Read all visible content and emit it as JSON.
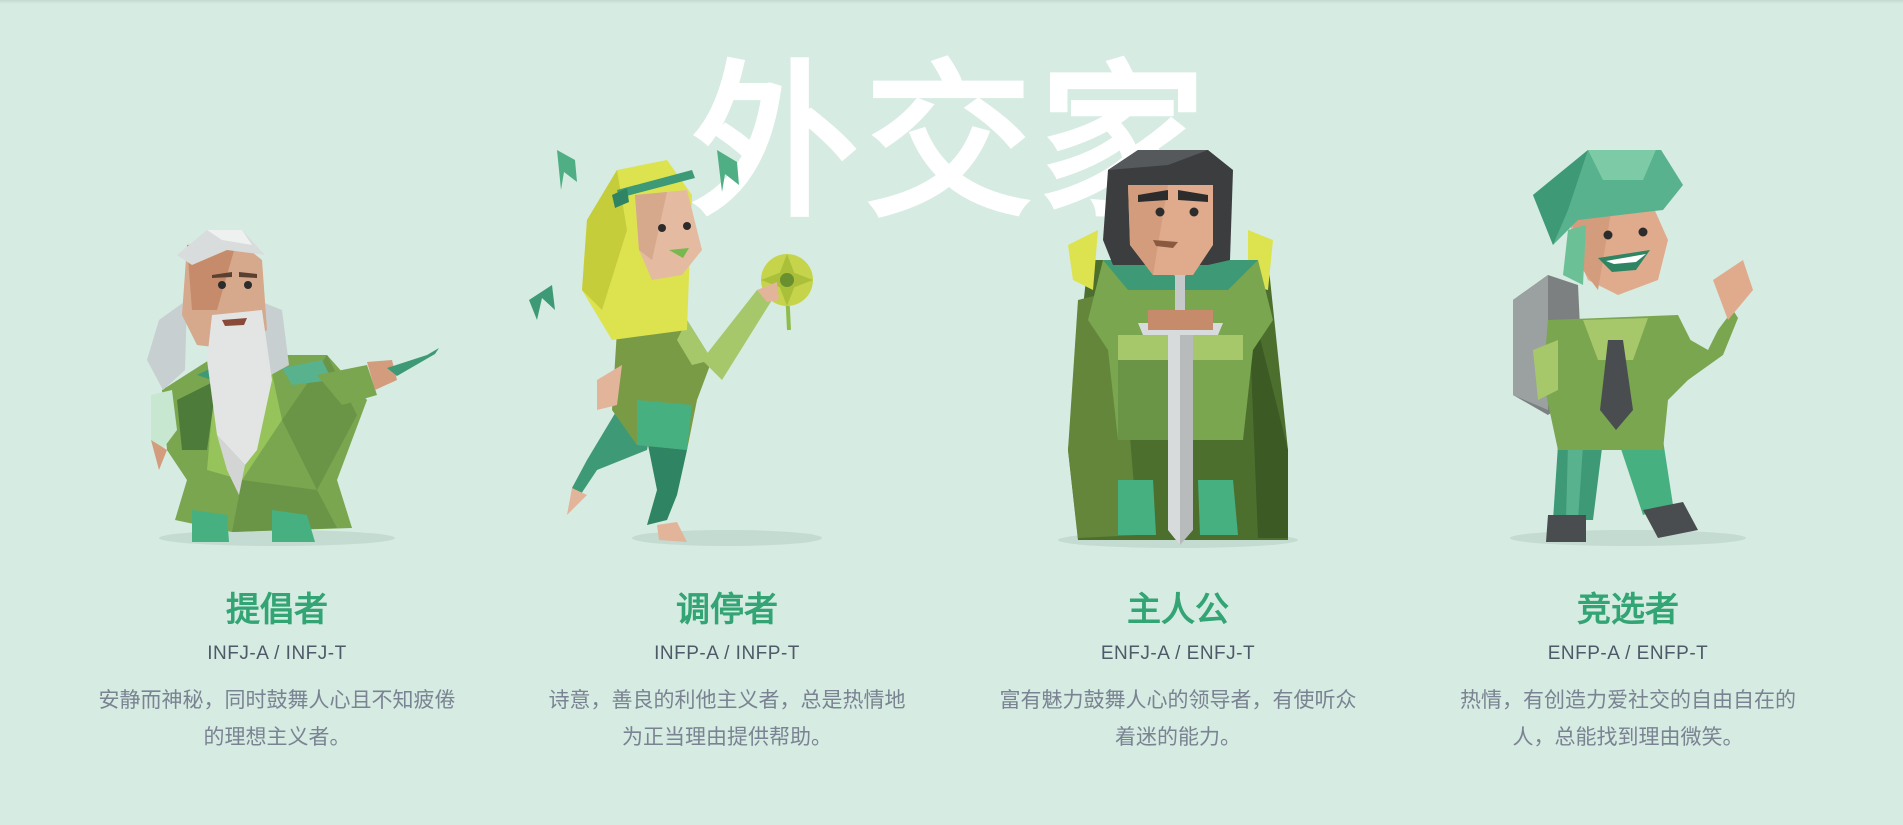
{
  "group": {
    "title": "外交家"
  },
  "personalities": [
    {
      "name": "提倡者",
      "code": "INFJ-A / INFJ-T",
      "description": "安静而神秘，同时鼓舞人心且不知疲倦的理想主义者。",
      "illustration": "advocate-illustration"
    },
    {
      "name": "调停者",
      "code": "INFP-A / INFP-T",
      "description": "诗意，善良的利他主义者，总是热情地为正当理由提供帮助。",
      "illustration": "mediator-illustration"
    },
    {
      "name": "主人公",
      "code": "ENFJ-A / ENFJ-T",
      "description": "富有魅力鼓舞人心的领导者，有使听众着迷的能力。",
      "illustration": "protagonist-illustration"
    },
    {
      "name": "竞选者",
      "code": "ENFP-A / ENFP-T",
      "description": "热情，有创造力爱社交的自由自在的人，总能找到理由微笑。",
      "illustration": "campaigner-illustration"
    }
  ],
  "colors": {
    "background": "#d6ebe2",
    "accent": "#33a474",
    "code_text": "#4f5a68",
    "description_text": "#7a8392"
  }
}
